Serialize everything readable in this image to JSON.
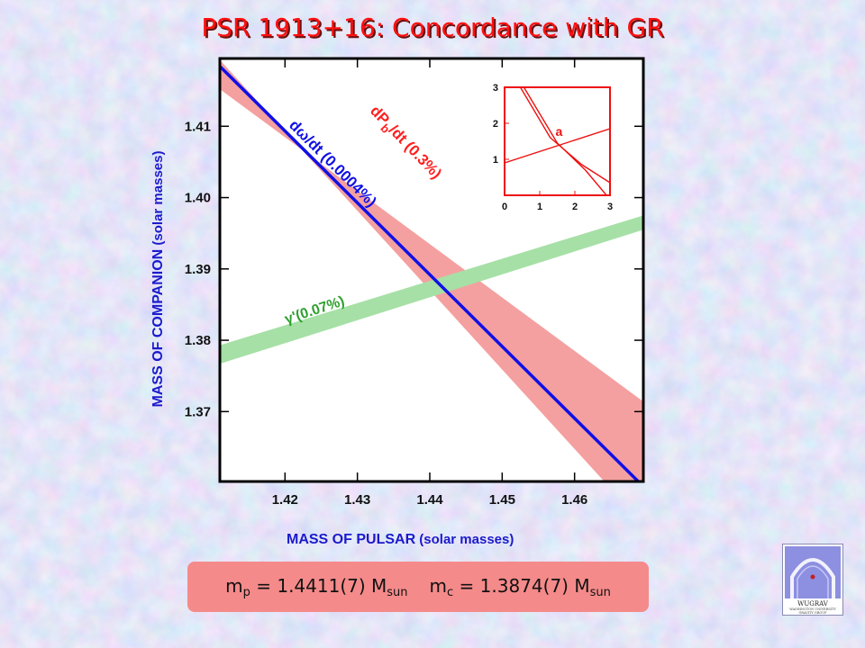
{
  "slide": {
    "title": "PSR 1913+16: Concordance with GR",
    "result": {
      "mp_symbol": "m",
      "mp_sub": "p",
      "mp_value": " = 1.4411(7) M",
      "mp_unit_sub": "sun",
      "mc_symbol": "m",
      "mc_sub": "c",
      "mc_value": " = 1.3874(7) M",
      "mc_unit_sub": "sun"
    },
    "logo": {
      "label": "WUGRAV",
      "sub": "WASHINGTON UNIVERSITY GRAVITY GROUP"
    }
  },
  "chart_data": [
    {
      "type": "line",
      "xlabel": "MASS OF PULSAR",
      "xlabel_unit": " (solar masses)",
      "ylabel": "MASS OF COMPANION",
      "ylabel_unit": " (solar masses)",
      "xlim": [
        1.411,
        1.4695
      ],
      "ylim": [
        1.3602,
        1.4195
      ],
      "x_ticks": [
        "1.42",
        "1.43",
        "1.44",
        "1.45",
        "1.46"
      ],
      "x_tick_values": [
        1.42,
        1.43,
        1.44,
        1.45,
        1.46
      ],
      "y_ticks": [
        "1.37",
        "1.38",
        "1.39",
        "1.40",
        "1.41"
      ],
      "y_tick_values": [
        1.37,
        1.38,
        1.39,
        1.4,
        1.41
      ],
      "grid": false,
      "series": [
        {
          "name": "dP",
          "name_sub": "b",
          "name_rest": "/dt (0.3%)",
          "kind": "band",
          "color": "#f4a0a0",
          "label_color": "#ff2020",
          "lower": [
            {
              "x": 1.411,
              "y": 1.4193
            },
            {
              "x": 1.4641,
              "y": 1.3602
            }
          ],
          "upper": [
            {
              "x": 1.411,
              "y": 1.4152
            },
            {
              "x": 1.4695,
              "y": 1.3598
            }
          ],
          "edge": [
            {
              "x": 1.4695,
              "y": 1.3714
            }
          ]
        },
        {
          "name": "dω/dt (0.0004%)",
          "kind": "line",
          "color": "#1010e6",
          "points": [
            {
              "x": 1.411,
              "y": 1.4184
            },
            {
              "x": 1.4688,
              "y": 1.3602
            }
          ]
        },
        {
          "name": "γ'(0.07%)",
          "kind": "band",
          "color": "#a6e0a6",
          "label_color": "#2ea02e",
          "lower": [
            {
              "x": 1.411,
              "y": 1.3767
            },
            {
              "x": 1.4695,
              "y": 1.3955
            }
          ],
          "upper": [
            {
              "x": 1.411,
              "y": 1.3793
            },
            {
              "x": 1.4695,
              "y": 1.3975
            }
          ]
        }
      ]
    },
    {
      "type": "line",
      "xlim": [
        0,
        3
      ],
      "ylim": [
        0,
        3
      ],
      "x_ticks": [
        "0",
        "1",
        "2",
        "3"
      ],
      "y_ticks": [
        "1",
        "2",
        "3"
      ],
      "annotation": "a",
      "series": [
        {
          "points": [
            {
              "x": 0,
              "y": 0.9
            },
            {
              "x": 3,
              "y": 1.85
            }
          ]
        },
        {
          "points": [
            {
              "x": 0.55,
              "y": 3
            },
            {
              "x": 1.5,
              "y": 1.45
            },
            {
              "x": 2.3,
              "y": 0.7
            },
            {
              "x": 2.9,
              "y": 0
            }
          ]
        },
        {
          "points": [
            {
              "x": 0.45,
              "y": 3
            },
            {
              "x": 1.3,
              "y": 1.6
            },
            {
              "x": 2.2,
              "y": 0.85
            },
            {
              "x": 3,
              "y": 0.35
            }
          ]
        }
      ]
    }
  ]
}
